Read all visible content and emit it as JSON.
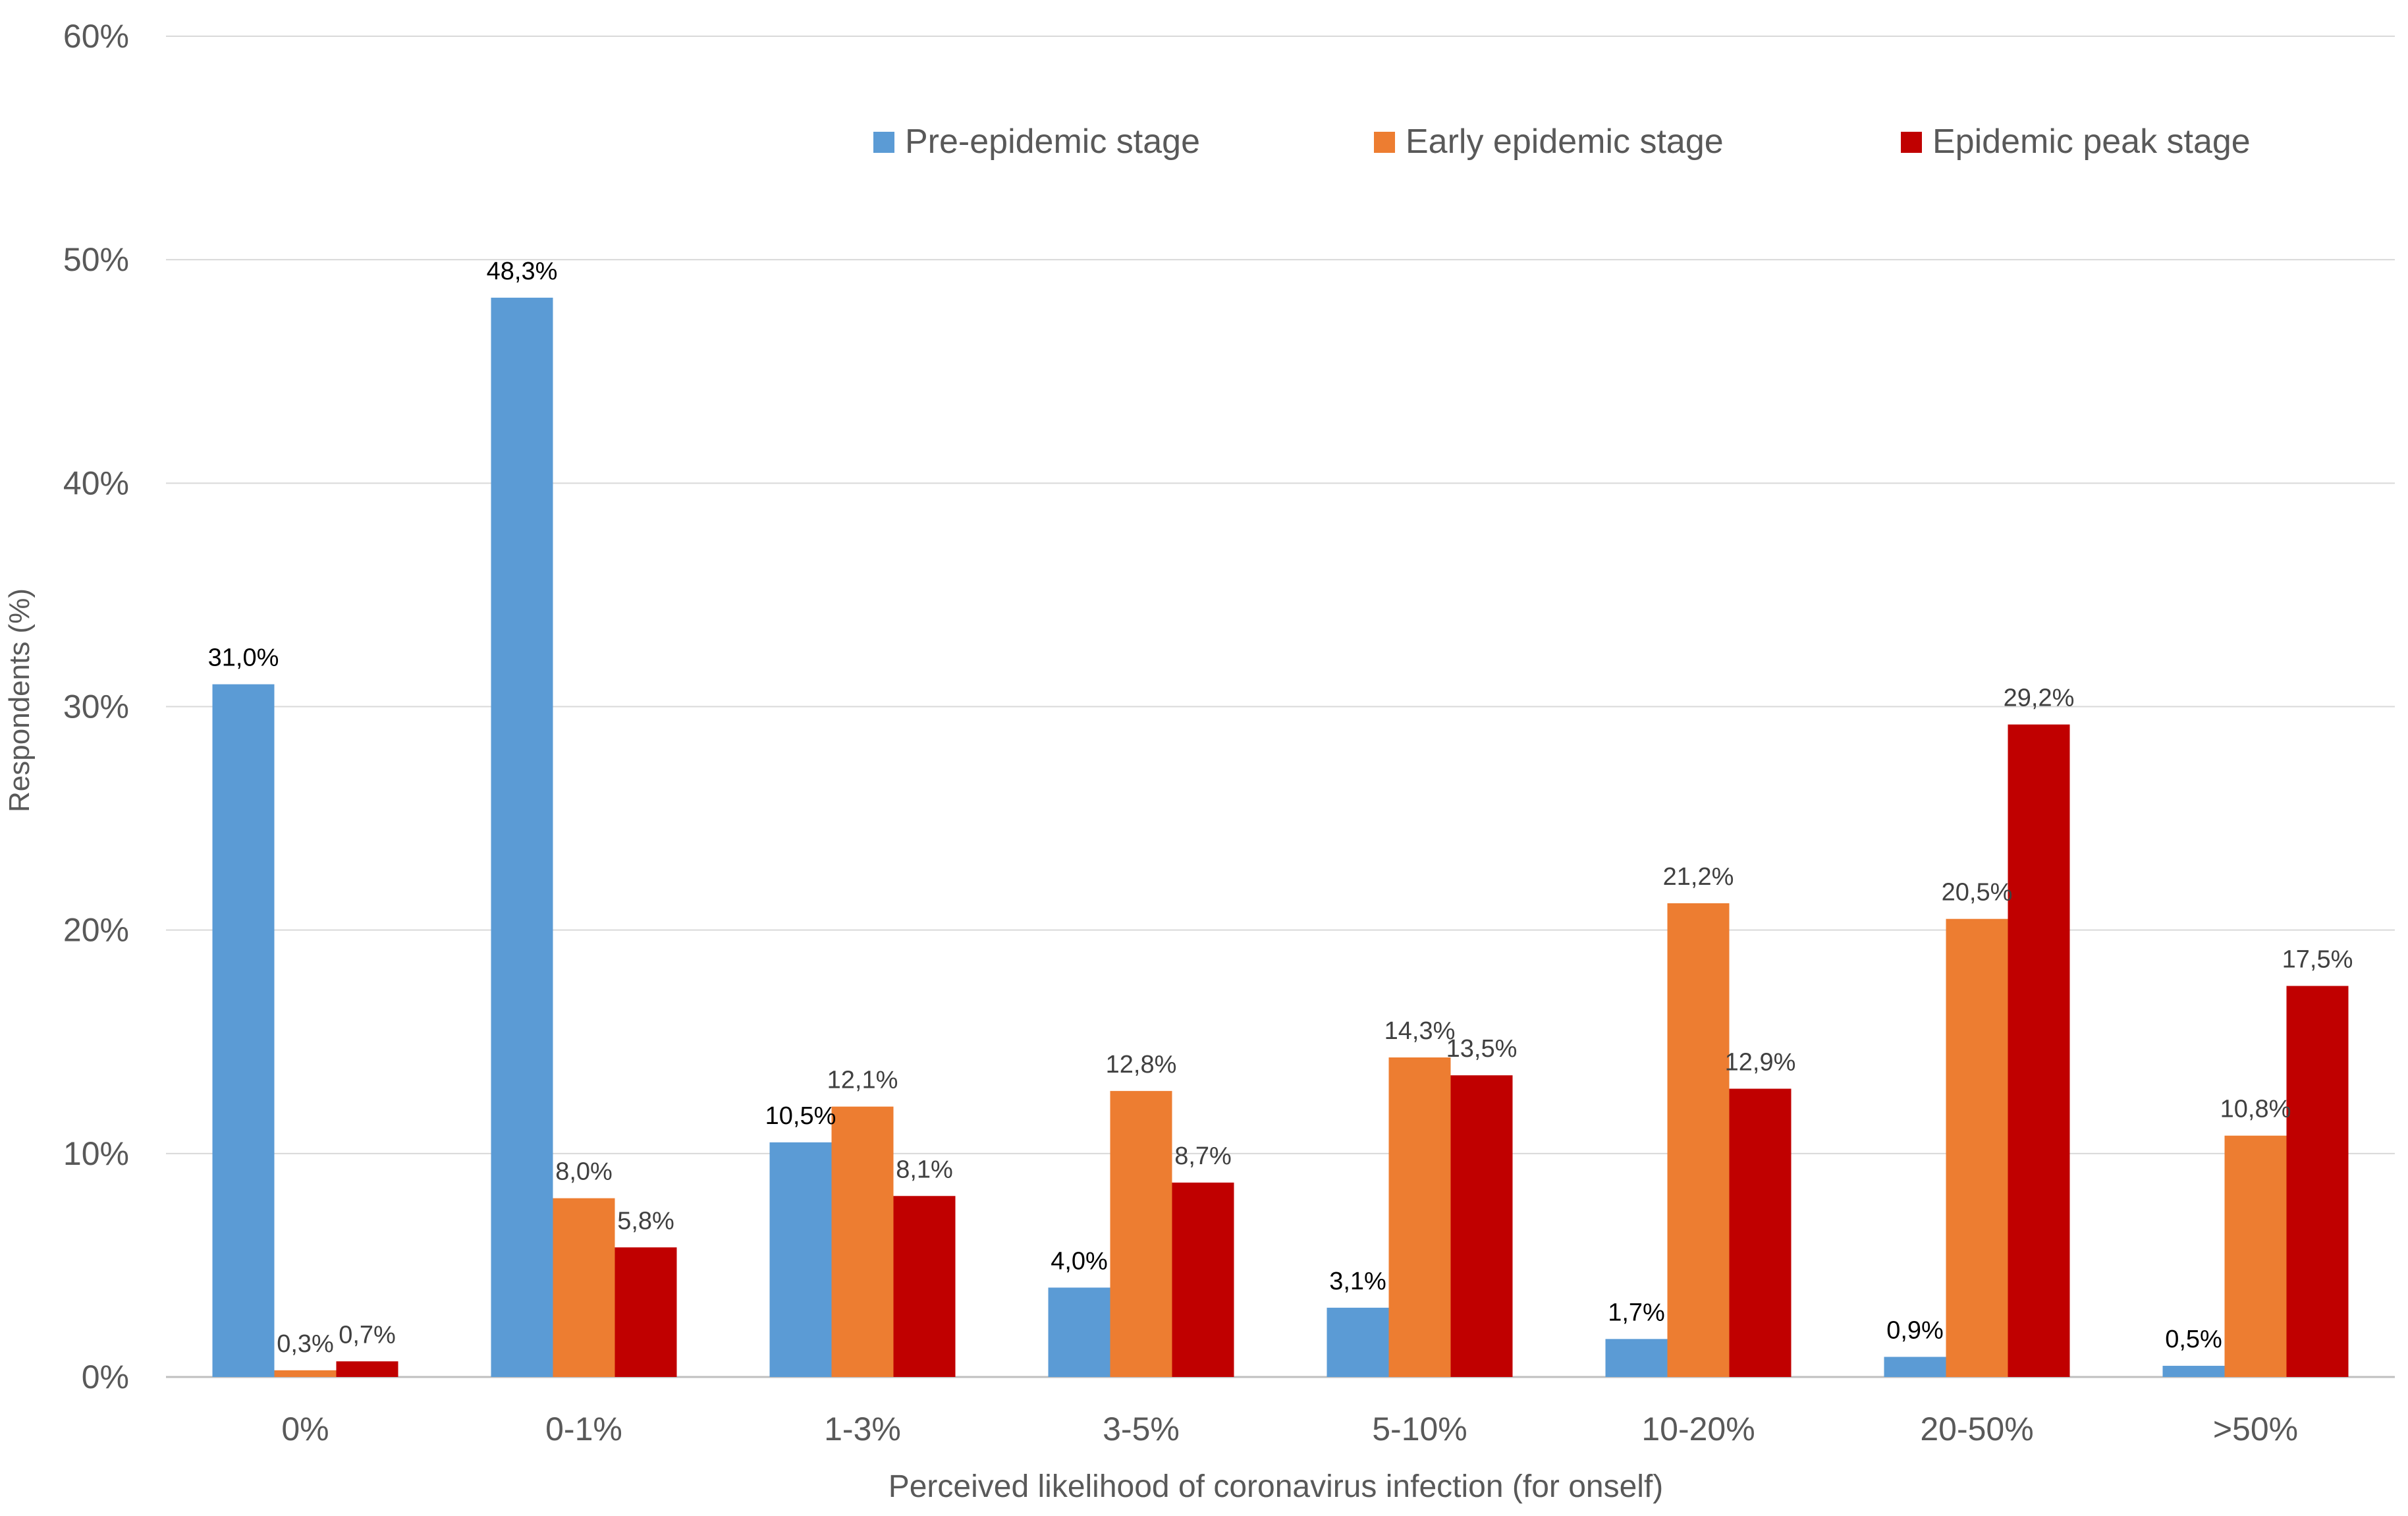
{
  "chart_data": {
    "type": "bar",
    "title": "",
    "xlabel": "Perceived likelihood of coronavirus infection (for onself)",
    "ylabel": "Respondents (%)",
    "ylim": [
      0,
      60
    ],
    "yticks": [
      0,
      10,
      20,
      30,
      40,
      50,
      60
    ],
    "ytick_labels": [
      "0%",
      "10%",
      "20%",
      "30%",
      "40%",
      "50%",
      "60%"
    ],
    "grid": true,
    "legend_position": "top-right",
    "categories": [
      "0%",
      "0-1%",
      "1-3%",
      "3-5%",
      "5-10%",
      "10-20%",
      "20-50%",
      ">50%"
    ],
    "series": [
      {
        "name": "Pre-epidemic stage",
        "color": "#5B9BD5",
        "label_color": "#000000",
        "values": [
          31.0,
          48.3,
          10.5,
          4.0,
          3.1,
          1.7,
          0.9,
          0.5
        ],
        "labels": [
          "31,0%",
          "48,3%",
          "10,5%",
          "4,0%",
          "3,1%",
          "1,7%",
          "0,9%",
          "0,5%"
        ]
      },
      {
        "name": "Early epidemic stage",
        "color": "#ED7D31",
        "label_color": "#404040",
        "values": [
          0.3,
          8.0,
          12.1,
          12.8,
          14.3,
          21.2,
          20.5,
          10.8
        ],
        "labels": [
          "0,3%",
          "8,0%",
          "12,1%",
          "12,8%",
          "14,3%",
          "21,2%",
          "20,5%",
          "10,8%"
        ]
      },
      {
        "name": "Epidemic peak stage",
        "color": "#C00000",
        "label_color": "#404040",
        "values": [
          0.7,
          5.8,
          8.1,
          8.7,
          13.5,
          12.9,
          29.2,
          17.5
        ],
        "labels": [
          "0,7%",
          "5,8%",
          "8,1%",
          "8,7%",
          "13,5%",
          "12,9%",
          "29,2%",
          "17,5%"
        ]
      }
    ]
  }
}
